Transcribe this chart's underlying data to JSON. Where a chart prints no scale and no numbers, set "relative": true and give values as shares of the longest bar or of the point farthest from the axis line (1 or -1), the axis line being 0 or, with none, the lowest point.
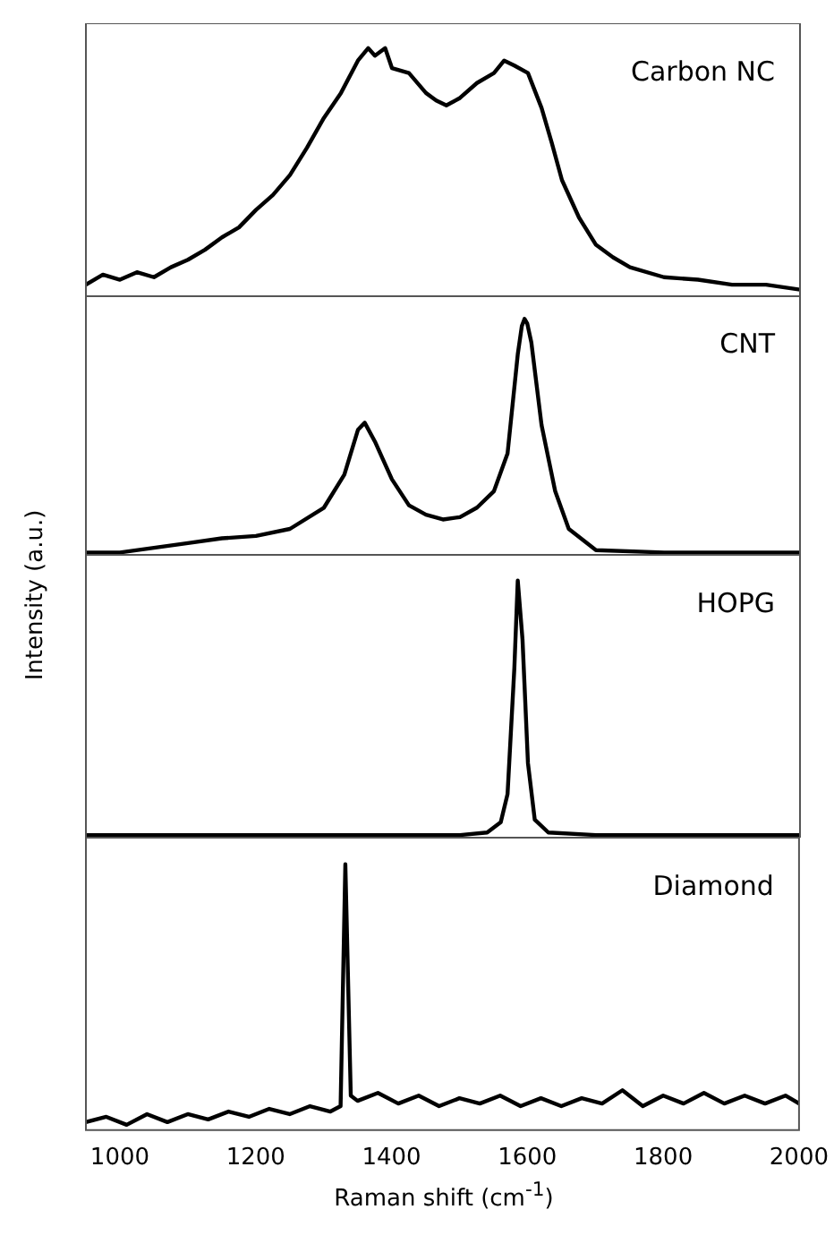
{
  "chart_data": [
    {
      "type": "line",
      "relative": true,
      "xlim": [
        950,
        2000
      ],
      "tick_labels": false,
      "x": [
        950,
        975,
        1000,
        1025,
        1050,
        1075,
        1100,
        1125,
        1150,
        1175,
        1200,
        1225,
        1250,
        1275,
        1300,
        1325,
        1350,
        1365,
        1375,
        1390,
        1400,
        1425,
        1450,
        1465,
        1480,
        1500,
        1525,
        1550,
        1565,
        1580,
        1600,
        1620,
        1635,
        1650,
        1675,
        1700,
        1725,
        1750,
        1800,
        1850,
        1900,
        1950,
        2000
      ],
      "series": [
        {
          "name": "Carbon NC",
          "color": "#000000",
          "values": [
            0.05,
            0.09,
            0.07,
            0.1,
            0.08,
            0.12,
            0.15,
            0.19,
            0.24,
            0.28,
            0.35,
            0.41,
            0.49,
            0.6,
            0.72,
            0.82,
            0.95,
            1,
            0.97,
            1,
            0.92,
            0.9,
            0.82,
            0.79,
            0.77,
            0.8,
            0.86,
            0.9,
            0.95,
            0.93,
            0.9,
            0.76,
            0.62,
            0.47,
            0.32,
            0.21,
            0.16,
            0.12,
            0.08,
            0.07,
            0.05,
            0.05,
            0.03
          ]
        }
      ]
    },
    {
      "type": "line",
      "relative": true,
      "xlim": [
        950,
        2000
      ],
      "tick_labels": false,
      "x": [
        950,
        1000,
        1050,
        1100,
        1150,
        1200,
        1250,
        1300,
        1330,
        1350,
        1360,
        1375,
        1400,
        1425,
        1450,
        1475,
        1500,
        1525,
        1550,
        1570,
        1585,
        1591,
        1595,
        1599,
        1605,
        1620,
        1640,
        1660,
        1700,
        1800,
        1900,
        2000
      ],
      "series": [
        {
          "name": "CNT",
          "color": "#000000",
          "values": [
            0.01,
            0.01,
            0.03,
            0.05,
            0.07,
            0.08,
            0.11,
            0.2,
            0.34,
            0.53,
            0.56,
            0.48,
            0.32,
            0.21,
            0.17,
            0.15,
            0.16,
            0.2,
            0.27,
            0.43,
            0.85,
            0.97,
            1,
            0.98,
            0.9,
            0.55,
            0.27,
            0.11,
            0.02,
            0.01,
            0.01,
            0.01
          ]
        }
      ]
    },
    {
      "type": "line",
      "relative": true,
      "xlim": [
        950,
        2000
      ],
      "tick_labels": false,
      "x": [
        950,
        1100,
        1200,
        1300,
        1400,
        1500,
        1540,
        1560,
        1570,
        1580,
        1585,
        1592,
        1600,
        1610,
        1630,
        1700,
        1800,
        1900,
        2000
      ],
      "series": [
        {
          "name": "HOPG",
          "color": "#000000",
          "values": [
            0.01,
            0.01,
            0.01,
            0.01,
            0.01,
            0.01,
            0.02,
            0.06,
            0.17,
            0.66,
            1,
            0.77,
            0.29,
            0.07,
            0.02,
            0.01,
            0.01,
            0.01,
            0.01
          ]
        }
      ]
    },
    {
      "type": "line",
      "relative": true,
      "xlim": [
        950,
        2000
      ],
      "xticks": [
        1000,
        1200,
        1400,
        1600,
        1800,
        2000
      ],
      "tick_labels": "x",
      "xlabel": "Raman shift (cm$^{-1}$)",
      "ylabel": "Intensity (a.u.)",
      "x": [
        950,
        980,
        1010,
        1040,
        1070,
        1100,
        1130,
        1160,
        1190,
        1220,
        1250,
        1280,
        1310,
        1325,
        1332,
        1340,
        1350,
        1380,
        1410,
        1440,
        1470,
        1500,
        1530,
        1560,
        1590,
        1620,
        1650,
        1680,
        1710,
        1740,
        1770,
        1800,
        1830,
        1860,
        1890,
        1920,
        1950,
        1980,
        2000
      ],
      "series": [
        {
          "name": "Diamond",
          "color": "#000000",
          "values": [
            0.03,
            0.05,
            0.02,
            0.06,
            0.03,
            0.06,
            0.04,
            0.07,
            0.05,
            0.08,
            0.06,
            0.09,
            0.07,
            0.09,
            1,
            0.13,
            0.11,
            0.14,
            0.1,
            0.13,
            0.09,
            0.12,
            0.1,
            0.13,
            0.09,
            0.12,
            0.09,
            0.12,
            0.1,
            0.15,
            0.09,
            0.13,
            0.1,
            0.14,
            0.1,
            0.13,
            0.1,
            0.13,
            0.1
          ]
        }
      ]
    }
  ]
}
